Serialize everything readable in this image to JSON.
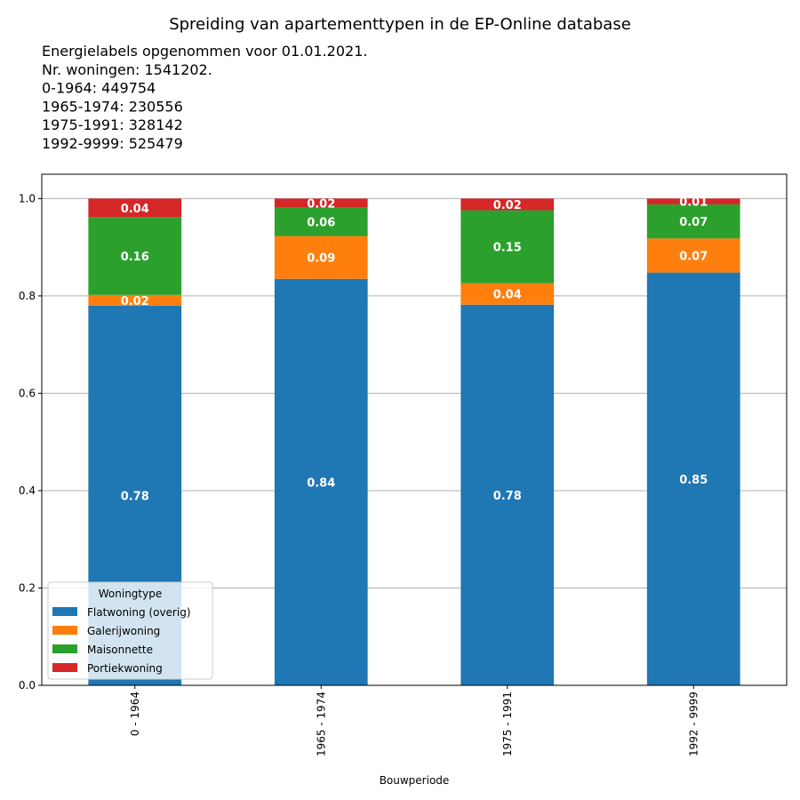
{
  "chart_data": {
    "type": "bar",
    "stacked": true,
    "title": "Spreiding van apartementtypen in de EP-Online database",
    "subtitle_lines": [
      "Energielabels opgenommen voor 01.01.2021.",
      "Nr. woningen: 1541202.",
      "    0-1964: 449754",
      "    1965-1974: 230556",
      "    1975-1991: 328142",
      "    1992-9999: 525479"
    ],
    "xlabel": "Bouwperiode",
    "ylabel": "",
    "ylim": [
      0,
      1.05
    ],
    "yticks": [
      0.0,
      0.2,
      0.4,
      0.6,
      0.8,
      1.0
    ],
    "ytick_labels": [
      "0.0",
      "0.2",
      "0.4",
      "0.6",
      "0.8",
      "1.0"
    ],
    "grid": "y",
    "categories": [
      "0 - 1964",
      "1965 - 1974",
      "1975 - 1991",
      "1992 - 9999"
    ],
    "series": [
      {
        "name": "Flatwoning (overig)",
        "color": "#1f77b4",
        "values": [
          0.78,
          0.835,
          0.782,
          0.848
        ],
        "labels": [
          "0.78",
          "0.84",
          "0.78",
          "0.85"
        ]
      },
      {
        "name": "Galerijwoning",
        "color": "#ff7f0e",
        "values": [
          0.022,
          0.088,
          0.044,
          0.07
        ],
        "labels": [
          "0.02",
          "0.09",
          "0.04",
          "0.07"
        ]
      },
      {
        "name": "Maisonnette",
        "color": "#2ca02c",
        "values": [
          0.16,
          0.058,
          0.15,
          0.07
        ],
        "labels": [
          "0.16",
          "0.06",
          "0.15",
          "0.07"
        ]
      },
      {
        "name": "Portiekwoning",
        "color": "#d62728",
        "values": [
          0.038,
          0.019,
          0.024,
          0.012
        ],
        "labels": [
          "0.04",
          "0.02",
          "0.02",
          "0.01"
        ]
      }
    ],
    "legend": {
      "title": "Woningtype",
      "placement": "lower-left"
    }
  }
}
